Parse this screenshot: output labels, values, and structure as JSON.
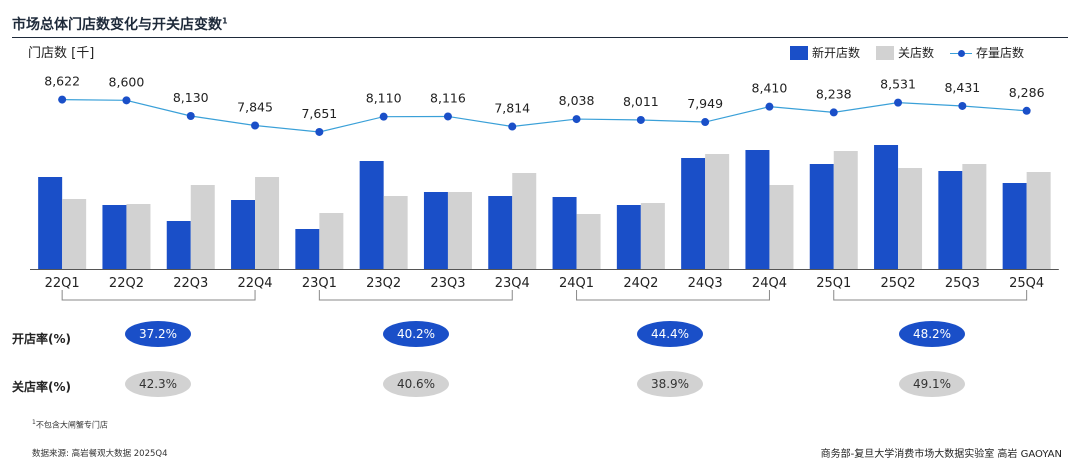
{
  "header": {
    "title": "市场总体门店数变化与开关店变数",
    "title_sup": "1",
    "y_label": "门店数 [千]"
  },
  "legend": {
    "new_stores": "新开店数",
    "closed_stores": "关店数",
    "total_stores": "存量店数"
  },
  "colors": {
    "new": "#1a4fc8",
    "closed": "#d2d2d2",
    "line": "#3aa0d8",
    "dot": "#1a4fc8"
  },
  "chart_data": {
    "type": "bar",
    "title": "市场总体门店数变化与开关店变数",
    "ylabel": "门店数 [千]",
    "categories": [
      "22Q1",
      "22Q2",
      "22Q3",
      "22Q4",
      "23Q1",
      "23Q2",
      "23Q3",
      "23Q4",
      "24Q1",
      "24Q2",
      "24Q3",
      "24Q4",
      "25Q1",
      "25Q2",
      "25Q3",
      "25Q4"
    ],
    "series": [
      {
        "name": "新开店数",
        "kind": "bar",
        "values": [
          92,
          64,
          48,
          69,
          40,
          108,
          77,
          73,
          72,
          64,
          111,
          119,
          105,
          124,
          98,
          86
        ]
      },
      {
        "name": "关店数",
        "kind": "bar",
        "values": [
          70,
          65,
          84,
          92,
          56,
          73,
          77,
          96,
          55,
          66,
          115,
          84,
          118,
          101,
          105,
          97
        ]
      },
      {
        "name": "存量店数",
        "kind": "line",
        "values": [
          8622,
          8600,
          8130,
          7845,
          7651,
          8110,
          8116,
          7814,
          8038,
          8011,
          7949,
          8410,
          8238,
          8531,
          8431,
          8286
        ],
        "labels": [
          "8,622",
          "8,600",
          "8,130",
          "7,845",
          "7,651",
          "8,110",
          "8,116",
          "7,814",
          "8,038",
          "8,011",
          "7,949",
          "8,410",
          "8,238",
          "8,531",
          "8,431",
          "8,286"
        ]
      }
    ],
    "bar_ylim": [
      0,
      130
    ],
    "line_ylim": [
      6500,
      9000
    ],
    "year_groups": [
      "2022",
      "2023",
      "2024",
      "2025"
    ]
  },
  "rates": {
    "open_label": "开店率(%)",
    "close_label": "关店率(%)",
    "open": [
      "37.2%",
      "40.2%",
      "44.4%",
      "48.2%"
    ],
    "close": [
      "42.3%",
      "40.6%",
      "38.9%",
      "49.1%"
    ]
  },
  "footer": {
    "footnote_sup": "1",
    "footnote": "不包含大闸蟹专门店",
    "source": "数据来源: 高岩餐观大数据 2025Q4",
    "credit": "商务部-复旦大学消费市场大数据实验室    高岩 GAOYAN"
  }
}
